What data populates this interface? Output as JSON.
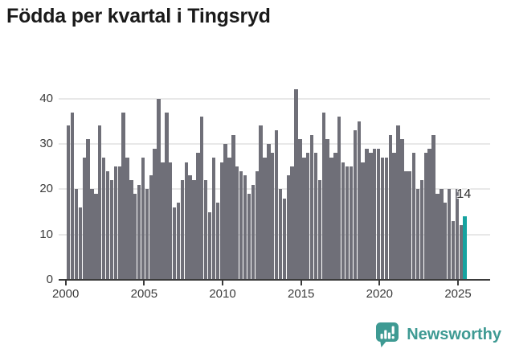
{
  "title": "Födda per kvartal i Tingsryd",
  "chart_data": {
    "type": "bar",
    "x_unit": "quarter",
    "x_start": "2000 Q1",
    "x_end": "2025 Q2",
    "values": [
      34,
      37,
      20,
      16,
      27,
      31,
      20,
      19,
      34,
      27,
      24,
      22,
      25,
      25,
      37,
      27,
      22,
      19,
      21,
      27,
      20,
      23,
      29,
      40,
      26,
      37,
      26,
      16,
      17,
      22,
      26,
      23,
      22,
      28,
      36,
      22,
      15,
      27,
      17,
      26,
      30,
      27,
      32,
      25,
      24,
      23,
      19,
      21,
      24,
      34,
      27,
      30,
      28,
      33,
      20,
      18,
      23,
      25,
      42,
      31,
      27,
      28,
      32,
      28,
      22,
      37,
      31,
      27,
      28,
      36,
      26,
      25,
      25,
      33,
      35,
      26,
      29,
      28,
      29,
      29,
      27,
      27,
      32,
      28,
      34,
      31,
      24,
      24,
      28,
      20,
      22,
      28,
      29,
      32,
      19,
      20,
      17,
      20,
      13,
      20,
      12,
      14
    ],
    "highlight": {
      "index": 101,
      "value": 14,
      "label": "14",
      "color": "#16a3a0"
    },
    "bar_color": "#6f6f78",
    "yticks": [
      0,
      10,
      20,
      30,
      40
    ],
    "xticks": [
      2000,
      2005,
      2010,
      2015,
      2020,
      2025
    ],
    "ylim": [
      0,
      42
    ],
    "grid": "horizontal",
    "gridline_color": "#e8e8e8",
    "axis_color": "#3b3b3b"
  },
  "footer": {
    "brand": "Newsworthy",
    "brand_color": "#3e9a93",
    "icon": "newsworthy-speech-bubble-bar-chart-icon"
  }
}
